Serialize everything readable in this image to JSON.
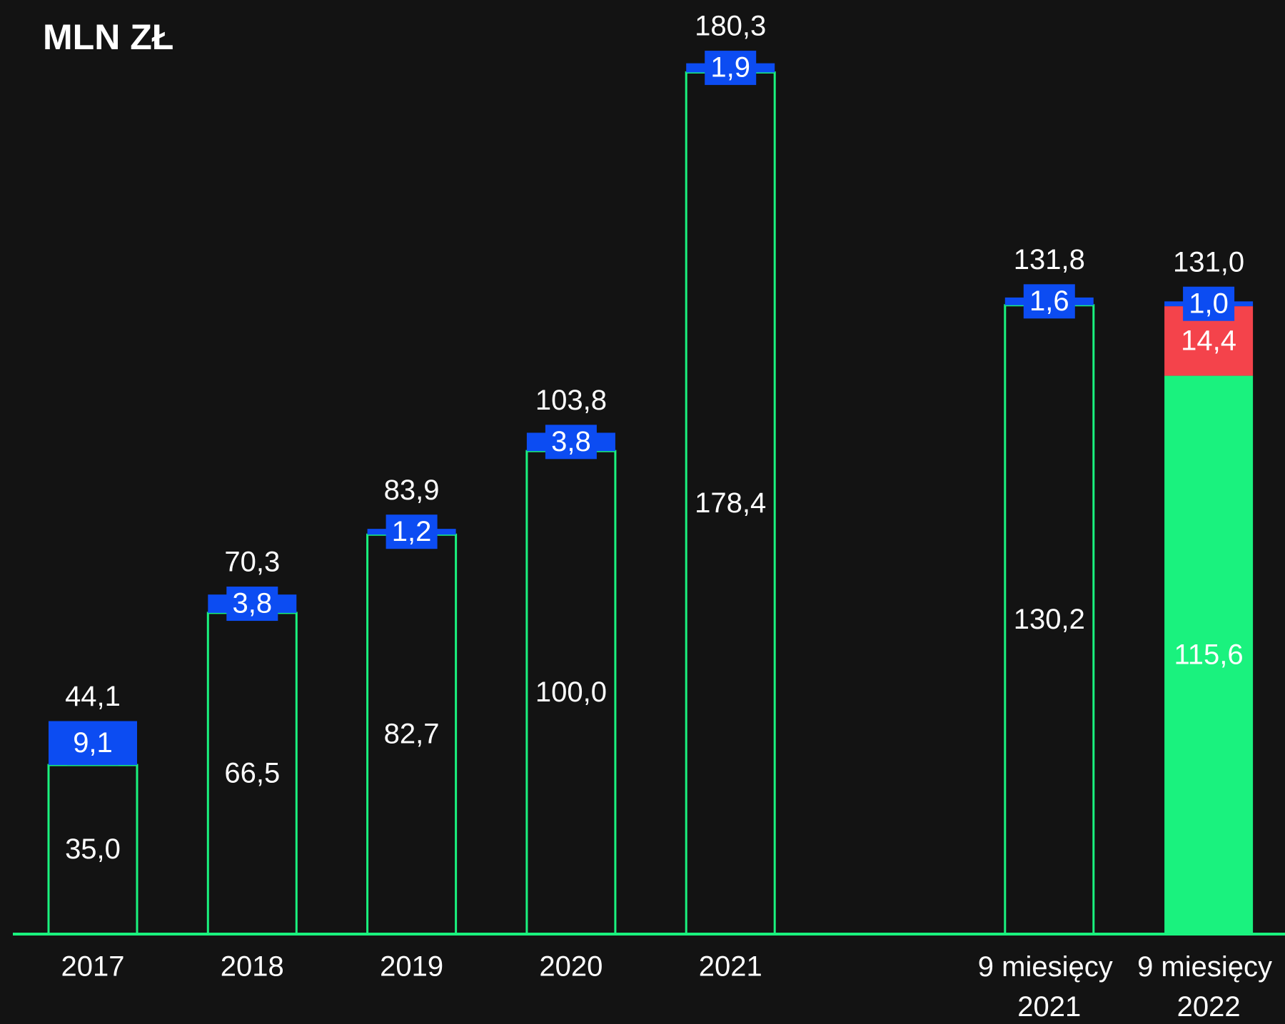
{
  "chart_data": {
    "type": "stacked_bar",
    "title": "MLN ZŁ",
    "categories": [
      "2017",
      "2018",
      "2019",
      "2020",
      "2021",
      "9 miesięcy 2021",
      "9 miesięcy 2022"
    ],
    "series": [
      {
        "color": "#1af27e",
        "values": [
          35.0,
          66.5,
          82.7,
          100.0,
          178.4,
          130.2,
          115.6
        ],
        "value_labels": [
          "35,0",
          "66,5",
          "82,7",
          "100,0",
          "178,4",
          "130,2",
          "115,6"
        ],
        "fill_styles": [
          "outline",
          "outline",
          "outline",
          "outline",
          "outline",
          "outline",
          "solid"
        ]
      },
      {
        "color": "#f4434b",
        "values": [
          null,
          null,
          null,
          null,
          null,
          null,
          14.4
        ],
        "value_labels": [
          null,
          null,
          null,
          null,
          null,
          null,
          "14,4"
        ]
      },
      {
        "color": "#0c4cf2",
        "values": [
          9.1,
          3.8,
          1.2,
          3.8,
          1.9,
          1.6,
          1.0
        ],
        "value_labels": [
          "9,1",
          "3,8",
          "1,2",
          "3,8",
          "1,9",
          "1,6",
          "1,0"
        ]
      }
    ],
    "totals": {
      "values": [
        44.1,
        70.3,
        83.9,
        103.8,
        180.3,
        131.8,
        131.0
      ],
      "value_labels": [
        "44,1",
        "70,3",
        "83,9",
        "103,8",
        "180,3",
        "131,8",
        "131,0"
      ]
    },
    "ylim": [
      0,
      190
    ]
  }
}
